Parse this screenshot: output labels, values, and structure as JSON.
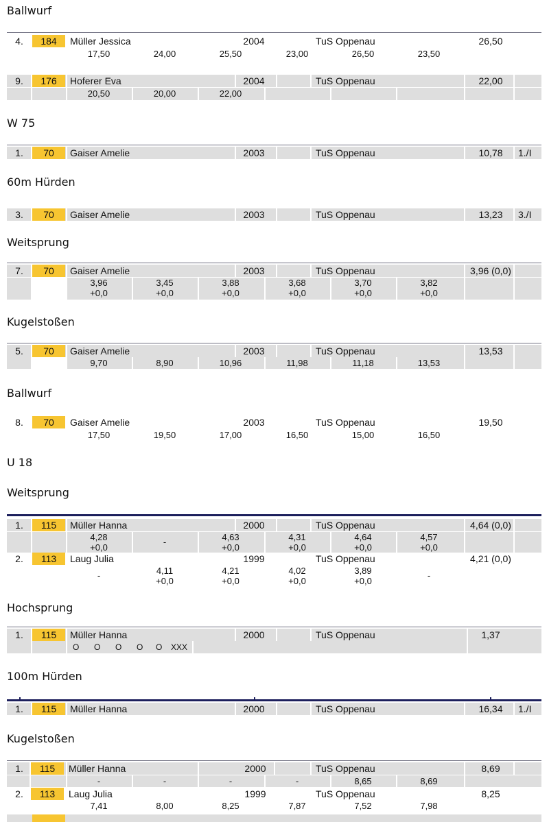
{
  "sections": [
    {
      "id": "s1",
      "heading": "Ballwurf",
      "rows": [
        {
          "place": "4.",
          "bib": "184",
          "name": "Müller Jessica",
          "year": "2004",
          "club": "TuS Oppenau",
          "result": "26,50",
          "rank": "",
          "attempts": [
            {
              "v": "17,50"
            },
            {
              "v": "24,00"
            },
            {
              "v": "25,50"
            },
            {
              "v": "23,00"
            },
            {
              "v": "26,50"
            },
            {
              "v": "23,50"
            }
          ]
        },
        {
          "place": "9.",
          "bib": "176",
          "name": "Hoferer Eva",
          "year": "2004",
          "club": "TuS Oppenau",
          "result": "22,00",
          "rank": "",
          "attempts": [
            {
              "v": "20,50"
            },
            {
              "v": "20,00"
            },
            {
              "v": "22,00"
            }
          ]
        }
      ]
    },
    {
      "id": "s2",
      "heading": "W 75"
    },
    {
      "id": "s3",
      "rows": [
        {
          "place": "1.",
          "bib": "70",
          "name": "Gaiser Amelie",
          "year": "2003",
          "club": "TuS Oppenau",
          "result": "10,78",
          "rank": "1./I"
        }
      ]
    },
    {
      "id": "s4",
      "heading": "60m Hürden",
      "rows": [
        {
          "place": "3.",
          "bib": "70",
          "name": "Gaiser Amelie",
          "year": "2003",
          "club": "TuS Oppenau",
          "result": "13,23",
          "rank": "3./I"
        }
      ]
    },
    {
      "id": "s5",
      "heading": "Weitsprung",
      "rows": [
        {
          "place": "7.",
          "bib": "70",
          "name": "Gaiser Amelie",
          "year": "2003",
          "club": "TuS Oppenau",
          "result": "3,96 (0,0)",
          "rank": "",
          "attempts": [
            {
              "v": "3,96",
              "w": "+0,0"
            },
            {
              "v": "3,45",
              "w": "+0,0"
            },
            {
              "v": "3,88",
              "w": "+0,0"
            },
            {
              "v": "3,68",
              "w": "+0,0"
            },
            {
              "v": "3,70",
              "w": "+0,0"
            },
            {
              "v": "3,82",
              "w": "+0,0"
            }
          ]
        }
      ]
    },
    {
      "id": "s6",
      "heading": "Kugelstoßen",
      "rows": [
        {
          "place": "5.",
          "bib": "70",
          "name": "Gaiser Amelie",
          "year": "2003",
          "club": "TuS Oppenau",
          "result": "13,53",
          "rank": "",
          "attempts": [
            {
              "v": "9,70"
            },
            {
              "v": "8,90"
            },
            {
              "v": "10,96"
            },
            {
              "v": "11,98"
            },
            {
              "v": "11,18"
            },
            {
              "v": "13,53"
            }
          ]
        }
      ]
    },
    {
      "id": "s7",
      "heading": "Ballwurf",
      "rows": [
        {
          "place": "8.",
          "bib": "70",
          "name": "Gaiser Amelie",
          "year": "2003",
          "club": "TuS Oppenau",
          "result": "19,50",
          "rank": "",
          "attempts": [
            {
              "v": "17,50"
            },
            {
              "v": "19,50"
            },
            {
              "v": "17,00"
            },
            {
              "v": "16,50"
            },
            {
              "v": "15,00"
            },
            {
              "v": "16,50"
            }
          ]
        }
      ]
    },
    {
      "id": "s8",
      "heading": "U 18"
    },
    {
      "id": "s9",
      "heading": "Weitsprung",
      "rows": [
        {
          "place": "1.",
          "bib": "115",
          "name": "Müller Hanna",
          "year": "2000",
          "club": "TuS Oppenau",
          "result": "4,64 (0,0)",
          "rank": "",
          "attempts": [
            {
              "v": "4,28",
              "w": "+0,0"
            },
            {
              "v": "-"
            },
            {
              "v": "4,63",
              "w": "+0,0"
            },
            {
              "v": "4,31",
              "w": "+0,0"
            },
            {
              "v": "4,64",
              "w": "+0,0"
            },
            {
              "v": "4,57",
              "w": "+0,0"
            }
          ]
        },
        {
          "place": "2.",
          "bib": "113",
          "name": "Laug Julia",
          "year": "1999",
          "club": "TuS Oppenau",
          "result": "4,21 (0,0)",
          "rank": "",
          "attempts": [
            {
              "v": "-"
            },
            {
              "v": "4,11",
              "w": "+0,0"
            },
            {
              "v": "4,21",
              "w": "+0,0"
            },
            {
              "v": "4,02",
              "w": "+0,0"
            },
            {
              "v": "3,89",
              "w": "+0,0"
            },
            {
              "v": "-"
            }
          ]
        }
      ]
    },
    {
      "id": "s10",
      "heading": "Hochsprung",
      "rows": [
        {
          "place": "1.",
          "bib": "115",
          "name": "Müller Hanna",
          "year": "2000",
          "club": "TuS Oppenau",
          "result": "1,37",
          "rank": "",
          "heights": [
            "O",
            "O",
            "O",
            "O",
            "O",
            "XXX"
          ]
        }
      ]
    },
    {
      "id": "s11",
      "heading": "100m Hürden",
      "rows": [
        {
          "place": "1.",
          "bib": "115",
          "name": "Müller Hanna",
          "year": "2000",
          "club": "TuS Oppenau",
          "result": "16,34",
          "rank": "1./I"
        }
      ]
    },
    {
      "id": "s12",
      "heading": "Kugelstoßen",
      "rows": [
        {
          "place": "1.",
          "bib": "115",
          "name": "Müller Hanna",
          "year": "2000",
          "club": "TuS Oppenau",
          "result": "8,69",
          "rank": "",
          "attempts": [
            {
              "v": "-"
            },
            {
              "v": "-"
            },
            {
              "v": "-"
            },
            {
              "v": "-"
            },
            {
              "v": "8,65"
            },
            {
              "v": "8,69"
            }
          ]
        },
        {
          "place": "2.",
          "bib": "113",
          "name": "Laug Julia",
          "year": "1999",
          "club": "TuS Oppenau",
          "result": "8,25",
          "rank": "",
          "attempts": [
            {
              "v": "7,41"
            },
            {
              "v": "8,00"
            },
            {
              "v": "8,25"
            },
            {
              "v": "7,87"
            },
            {
              "v": "7,52"
            },
            {
              "v": "7,98"
            }
          ]
        }
      ]
    }
  ]
}
